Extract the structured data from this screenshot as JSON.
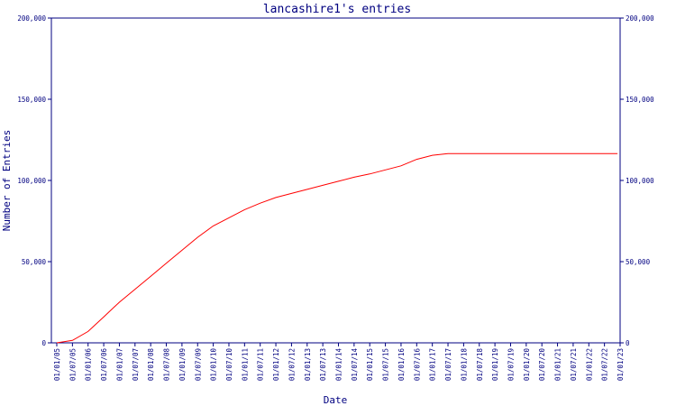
{
  "chart_data": {
    "type": "line",
    "title": "lancashire1's entries",
    "xlabel": "Date",
    "ylabel": "Number of Entries",
    "ylim": [
      0,
      200000
    ],
    "y_ticks": [
      {
        "value": 0,
        "label": "0"
      },
      {
        "value": 50000,
        "label": "50,000"
      },
      {
        "value": 100000,
        "label": "100,000"
      },
      {
        "value": 150000,
        "label": "150,000"
      },
      {
        "value": 200000,
        "label": "200,000"
      }
    ],
    "x_ticks": [
      "01/01/05",
      "01/07/05",
      "01/01/06",
      "01/07/06",
      "01/01/07",
      "01/07/07",
      "01/01/08",
      "01/07/08",
      "01/01/09",
      "01/07/09",
      "01/01/10",
      "01/07/10",
      "01/01/11",
      "01/07/11",
      "01/01/12",
      "01/07/12",
      "01/01/13",
      "01/07/13",
      "01/01/14",
      "01/07/14",
      "01/01/15",
      "01/07/15",
      "01/01/16",
      "01/07/16",
      "01/01/17",
      "01/07/17",
      "01/01/18",
      "01/07/18",
      "01/01/19",
      "01/07/19",
      "01/01/20",
      "01/07/20",
      "01/01/21",
      "01/07/21",
      "01/01/22",
      "01/07/22",
      "01/01/23"
    ],
    "grid": false,
    "line_color": "#ff0000",
    "axis_color": "#000080",
    "series": [
      {
        "x": [
          "2005-01-01",
          "2005-07-01",
          "2006-01-01",
          "2006-07-01",
          "2007-01-01",
          "2007-07-01",
          "2008-01-01",
          "2008-07-01",
          "2009-01-01",
          "2009-07-01",
          "2010-01-01",
          "2010-07-01",
          "2011-01-01",
          "2011-07-01",
          "2012-01-01",
          "2012-07-01",
          "2013-01-01",
          "2013-07-01",
          "2014-01-01",
          "2014-07-01",
          "2015-01-01",
          "2015-07-01",
          "2016-01-01",
          "2016-07-01",
          "2017-01-01",
          "2017-07-01",
          "2018-01-01",
          "2018-07-01",
          "2019-01-01",
          "2019-07-01",
          "2020-01-01",
          "2020-07-01",
          "2021-01-01",
          "2021-07-01",
          "2022-01-01",
          "2022-07-01",
          "2022-12-01"
        ],
        "y": [
          0,
          1500,
          7000,
          16000,
          25000,
          33000,
          41000,
          49000,
          57000,
          65000,
          72000,
          77000,
          82000,
          86000,
          89500,
          92000,
          94500,
          97000,
          99500,
          102000,
          104000,
          106500,
          109000,
          113000,
          115500,
          116500,
          116500,
          116500,
          116500,
          116500,
          116500,
          116500,
          116500,
          116500,
          116500,
          116500,
          116500
        ]
      }
    ]
  }
}
